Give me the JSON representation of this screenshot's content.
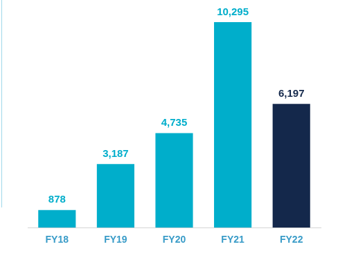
{
  "chart_data": {
    "type": "bar",
    "categories": [
      "FY18",
      "FY19",
      "FY20",
      "FY21",
      "FY22"
    ],
    "values": [
      878,
      3187,
      4735,
      10295,
      6197
    ],
    "value_labels": [
      "878",
      "3,187",
      "4,735",
      "10,295",
      "6,197"
    ],
    "colors": [
      "#00AECB",
      "#00AECB",
      "#00AECB",
      "#00AECB",
      "#14284B"
    ],
    "data_labels": true,
    "tick_labels": "x",
    "grid": false
  }
}
